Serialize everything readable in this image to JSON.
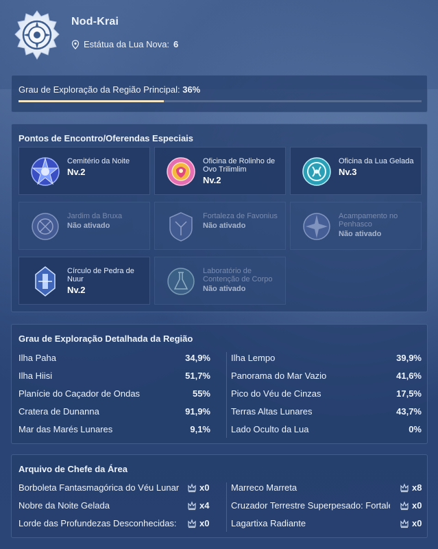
{
  "header": {
    "region_name": "Nod-Krai",
    "statue_label": "Estátua da Lua Nova:",
    "statue_value": "6"
  },
  "main_exploration": {
    "label": "Grau de Exploração da Região Principal:",
    "value": "36%",
    "progress": 0.36
  },
  "points": {
    "title": "Pontos de Encontro/Oferendas Especiais",
    "items": [
      {
        "name": "Cemitério da Noite",
        "status": "Nv.2",
        "active": true,
        "icon": "night-cemetery-icon"
      },
      {
        "name": "Oficina de Rolinho de Ovo Trilimlim",
        "status": "Nv.2",
        "active": true,
        "icon": "egg-roll-workshop-icon"
      },
      {
        "name": "Oficina da Lua Gelada",
        "status": "Nv.3",
        "active": true,
        "icon": "frost-moon-workshop-icon"
      },
      {
        "name": "Jardim da Bruxa",
        "status": "Não ativado",
        "active": false,
        "icon": "witch-garden-icon"
      },
      {
        "name": "Fortaleza de Favonius",
        "status": "Não ativado",
        "active": false,
        "icon": "favonius-fortress-icon"
      },
      {
        "name": "Acampamento no Penhasco",
        "status": "Não ativado",
        "active": false,
        "icon": "cliff-camp-icon"
      },
      {
        "name": "Círculo de Pedra de Nuur",
        "status": "Nv.2",
        "active": true,
        "icon": "nuur-stone-circle-icon"
      },
      {
        "name": "Laboratório de Contenção de Corpo",
        "status": "Não ativado",
        "active": false,
        "icon": "containment-lab-icon"
      }
    ]
  },
  "detail": {
    "title": "Grau de Exploração Detalhada da Região",
    "left": [
      {
        "name": "Ilha Paha",
        "value": "34,9%"
      },
      {
        "name": "Ilha Hiisi",
        "value": "51,7%"
      },
      {
        "name": "Planície do Caçador de Ondas",
        "value": "55%"
      },
      {
        "name": "Cratera de Dunanna",
        "value": "91,9%"
      },
      {
        "name": "Mar das Marés Lunares",
        "value": "9,1%"
      }
    ],
    "right": [
      {
        "name": "Ilha Lempo",
        "value": "39,9%"
      },
      {
        "name": "Panorama do Mar Vazio",
        "value": "41,6%"
      },
      {
        "name": "Pico do Véu de Cinzas",
        "value": "17,5%"
      },
      {
        "name": "Terras Altas Lunares",
        "value": "43,7%"
      },
      {
        "name": "Lado Oculto da Lua",
        "value": "0%"
      }
    ]
  },
  "boss": {
    "title": "Arquivo de Chefe da Área",
    "left": [
      {
        "name": "Borboleta Fantasmagórica do Véu Lunar",
        "count": "x0"
      },
      {
        "name": "Nobre da Noite Gelada",
        "count": "x4"
      },
      {
        "name": "Lorde das Profundezas Desconhecidas:",
        "count": "x0"
      }
    ],
    "right": [
      {
        "name": "Marreco Marreta",
        "count": "x8"
      },
      {
        "name": "Cruzador Terrestre Superpesado: Fortaleza",
        "count": "x0"
      },
      {
        "name": "Lagartixa Radiante",
        "count": "x0"
      }
    ]
  },
  "colors": {
    "accent_bar": "#f4e6c4",
    "panel_bg": "#263e6c"
  }
}
